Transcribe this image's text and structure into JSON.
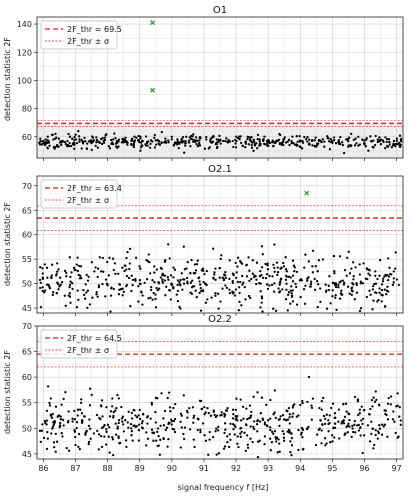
{
  "chart_data": {
    "type": "scatter",
    "xlabel": "signal frequency f [Hz]",
    "ylabel": "detection statistic 2F",
    "xlim": [
      85.8,
      97.2
    ],
    "x_ticks": [
      86,
      87,
      88,
      89,
      90,
      91,
      92,
      93,
      94,
      95,
      96,
      97
    ],
    "grid": true,
    "legend_position": "top-left",
    "colors": {
      "points": "#000000",
      "outlier": "#1a9b1a",
      "threshold": "#e41a1c"
    },
    "panels": [
      {
        "title": "O1",
        "ylim": [
          45,
          145
        ],
        "y_ticks": [
          60,
          80,
          100,
          120,
          140
        ],
        "threshold": 69.5,
        "sigma": 2,
        "shaded_below_threshold": true,
        "legend": [
          "2F_thr = 69.5",
          "2F_thr ± σ"
        ],
        "noise_mean": 56.5,
        "noise_sd": 2.3,
        "noise_count": 520,
        "outliers": [
          {
            "x": 89.4,
            "y": 141
          },
          {
            "x": 89.4,
            "y": 93
          }
        ]
      },
      {
        "title": "O2.1",
        "ylim": [
          44,
          72
        ],
        "y_ticks": [
          45,
          50,
          55,
          60,
          65,
          70
        ],
        "threshold": 63.4,
        "sigma": 2.5,
        "shaded_below_threshold": false,
        "legend": [
          "2F_thr = 63.4",
          "2F_thr ± σ"
        ],
        "noise_mean": 50.5,
        "noise_sd": 2.8,
        "noise_count": 600,
        "outliers": [
          {
            "x": 94.2,
            "y": 68.5
          }
        ]
      },
      {
        "title": "O2.2",
        "ylim": [
          44,
          70
        ],
        "y_ticks": [
          45,
          50,
          55,
          60,
          65,
          70
        ],
        "threshold": 64.5,
        "sigma": 2.5,
        "shaded_below_threshold": false,
        "legend": [
          "2F_thr = 64.5",
          "2F_thr ± σ"
        ],
        "noise_mean": 51,
        "noise_sd": 2.8,
        "noise_count": 600,
        "outliers": []
      }
    ]
  }
}
